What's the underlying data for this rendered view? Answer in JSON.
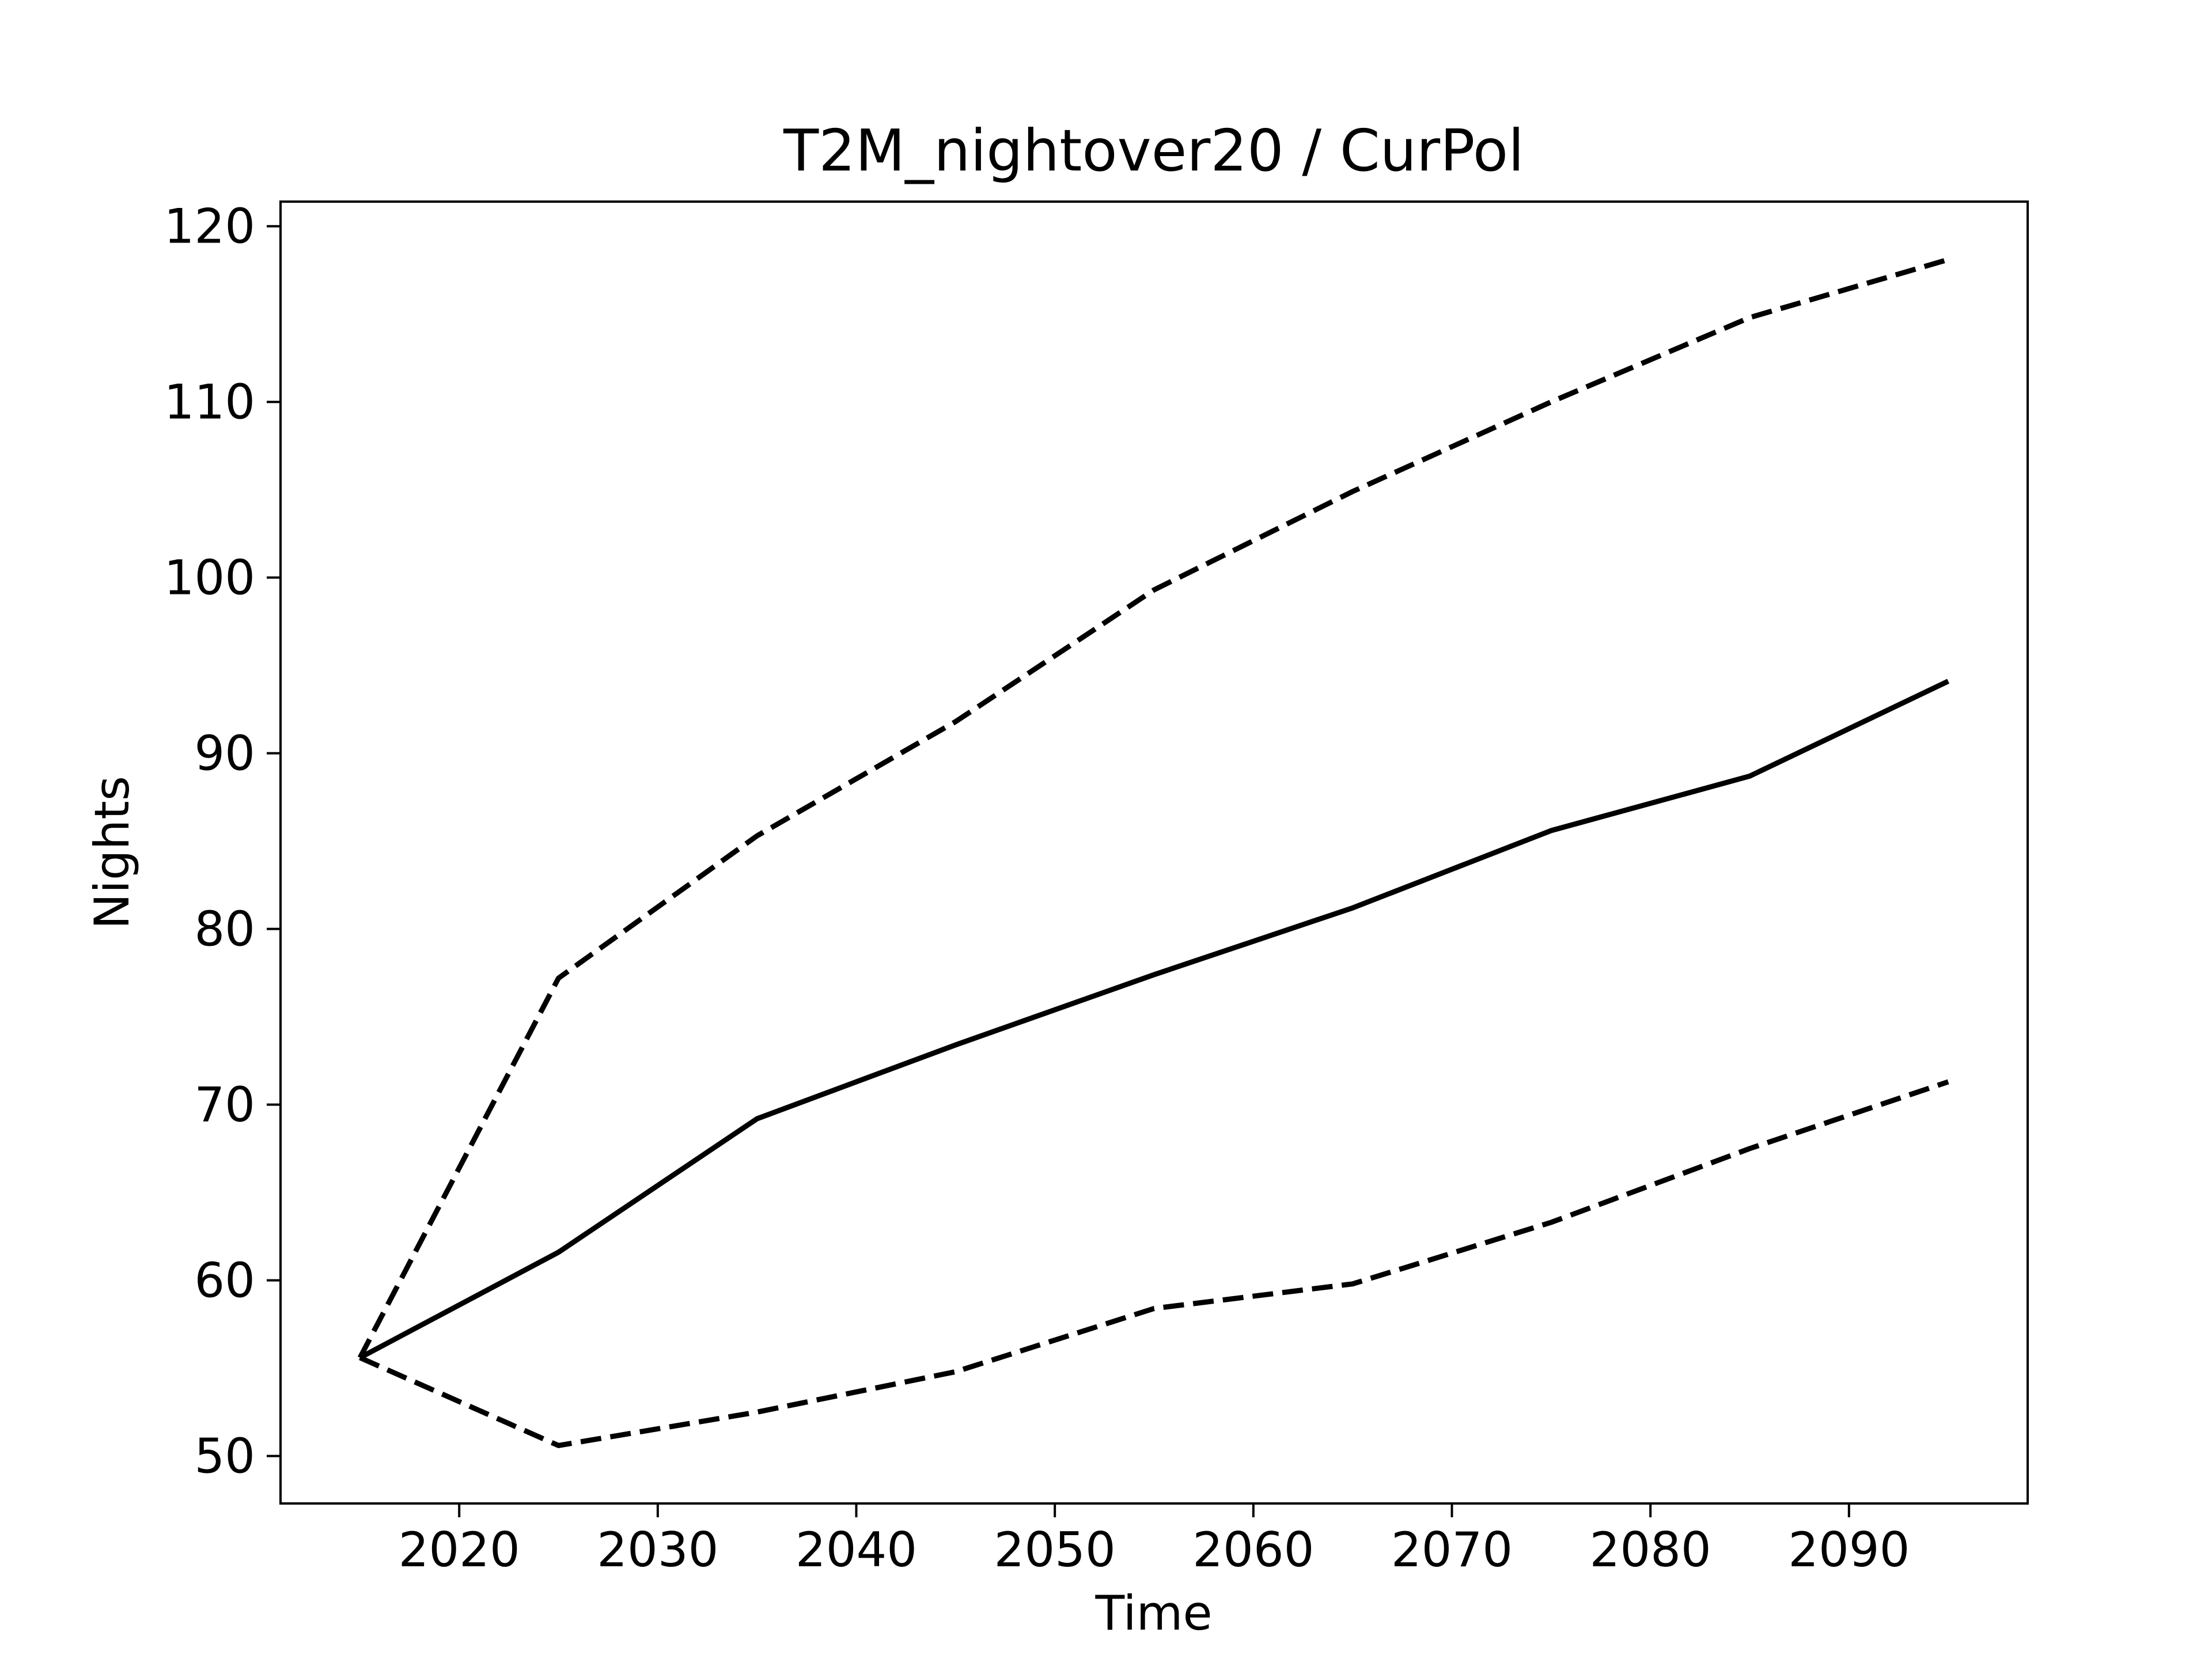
{
  "chart_data": {
    "type": "line",
    "title": "T2M_nightover20 / CurPol",
    "xlabel": "Time",
    "ylabel": "Nights",
    "xlim": [
      2011,
      2099
    ],
    "ylim": [
      47.3,
      121.4
    ],
    "xticks": [
      2020,
      2030,
      2040,
      2050,
      2060,
      2070,
      2080,
      2090
    ],
    "yticks": [
      50,
      60,
      70,
      80,
      90,
      100,
      110,
      120
    ],
    "grid": false,
    "line_color": "#000000",
    "x": [
      2015,
      2025,
      2035,
      2045,
      2055,
      2065,
      2075,
      2085,
      2095
    ],
    "series": [
      {
        "style": "dashed",
        "values": [
          55.6,
          77.2,
          85.3,
          91.8,
          99.3,
          104.9,
          110.0,
          114.8,
          118.1
        ]
      },
      {
        "style": "solid",
        "values": [
          55.6,
          61.6,
          69.2,
          73.4,
          77.4,
          81.2,
          85.6,
          88.7,
          94.1
        ]
      },
      {
        "style": "dashed",
        "values": [
          55.6,
          50.6,
          52.5,
          54.8,
          58.4,
          59.8,
          63.3,
          67.5,
          71.3
        ]
      }
    ]
  }
}
